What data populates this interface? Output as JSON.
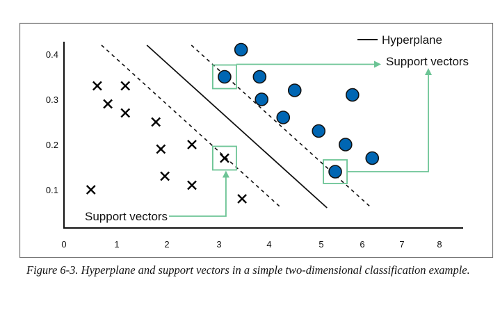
{
  "chart_data": {
    "type": "scatter",
    "title": "",
    "xlabel": "",
    "ylabel": "",
    "x_ticks": [
      "0",
      "1",
      "2",
      "3",
      "4",
      "5",
      "6",
      "7",
      "8"
    ],
    "y_ticks": [
      "0.1",
      "0.2",
      "0.3",
      "0.4"
    ],
    "xlim": [
      0,
      8
    ],
    "ylim": [
      0,
      0.43
    ],
    "grid": false,
    "series": [
      {
        "marker": "x",
        "color": "#000000",
        "points": [
          [
            0.63,
            0.33
          ],
          [
            1.17,
            0.33
          ],
          [
            0.83,
            0.29
          ],
          [
            1.17,
            0.27
          ],
          [
            1.78,
            0.25
          ],
          [
            1.88,
            0.19
          ],
          [
            2.48,
            0.2
          ],
          [
            1.96,
            0.13
          ],
          [
            2.48,
            0.11
          ],
          [
            0.51,
            0.1
          ],
          [
            3.46,
            0.08
          ],
          [
            3.11,
            0.17
          ]
        ]
      },
      {
        "marker": "circle",
        "color": "#0066b3",
        "points": [
          [
            3.44,
            0.41
          ],
          [
            3.11,
            0.35
          ],
          [
            3.81,
            0.35
          ],
          [
            3.85,
            0.3
          ],
          [
            4.49,
            0.32
          ],
          [
            4.27,
            0.26
          ],
          [
            4.95,
            0.23
          ],
          [
            5.76,
            0.31
          ],
          [
            5.59,
            0.2
          ],
          [
            6.25,
            0.17
          ],
          [
            5.34,
            0.14
          ]
        ]
      }
    ],
    "hyperplane": {
      "from": [
        1.6,
        0.42
      ],
      "to": [
        5.14,
        0.06
      ]
    },
    "margins": [
      {
        "from": [
          0.71,
          0.42
        ],
        "to": [
          4.23,
          0.06
        ]
      },
      {
        "from": [
          2.47,
          0.42
        ],
        "to": [
          6.23,
          0.06
        ]
      }
    ],
    "support_vectors": [
      [
        3.11,
        0.17
      ],
      [
        3.11,
        0.35
      ],
      [
        5.34,
        0.14
      ]
    ],
    "legend": {
      "placement": "top-right",
      "hyperplane_label": "Hyperplane"
    },
    "annotations": {
      "support_vectors_top": "Support vectors",
      "support_vectors_bottom": "Support vectors"
    },
    "highlight_color": "#6cc495"
  },
  "caption": "Figure 6-3. Hyperplane and support vectors in a simple two-dimensional classification example."
}
